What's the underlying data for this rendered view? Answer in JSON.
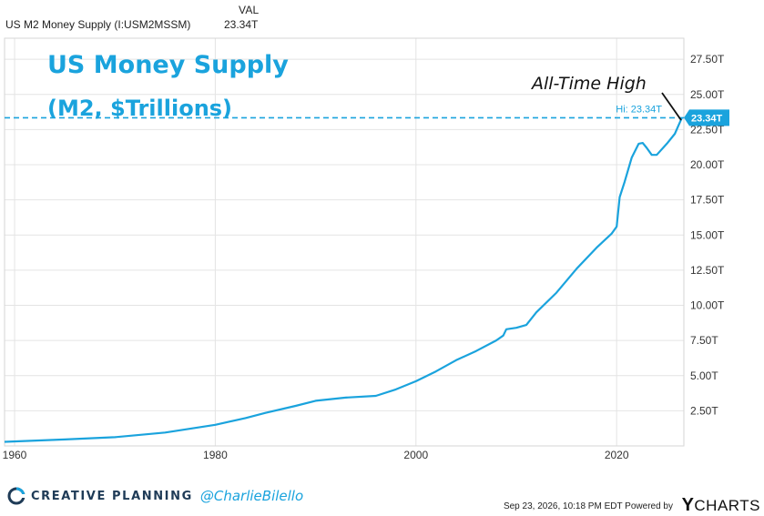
{
  "header": {
    "column_label": "VAL",
    "series_name": "US M2 Money Supply (I:USM2MSSM)",
    "series_value": "23.34T"
  },
  "annotations": {
    "title_line1": "US Money Supply",
    "title_line2": "(M2, $Trillions)",
    "callout": "All-Time High",
    "hi_label": "Hi: 23.34T",
    "last_badge": "23.34T"
  },
  "footer": {
    "brand": "CREATIVE PLANNING",
    "handle": "@CharlieBilello",
    "timestamp": "Sep 23, 2026, 10:18 PM EDT Powered by",
    "ycharts": "CHARTS",
    "ycharts_prefix": "Y"
  },
  "colors": {
    "line": "#1aa3dd",
    "grid": "#e4e4e4",
    "badge": "#1aa3dd",
    "brand_navy": "#1f3b57"
  },
  "chart_data": {
    "type": "line",
    "title": "US Money Supply",
    "subtitle": "(M2, $Trillions)",
    "xlabel": "",
    "ylabel": "",
    "xlim": [
      1959,
      2026.7
    ],
    "ylim": [
      0,
      29
    ],
    "x_ticks": [
      1960,
      1980,
      2000,
      2020
    ],
    "y_ticks": [
      2.5,
      5,
      7.5,
      10,
      12.5,
      15,
      17.5,
      20,
      22.5,
      25,
      27.5
    ],
    "y_tick_labels": [
      "2.50T",
      "5.00T",
      "7.50T",
      "10.00T",
      "12.50T",
      "15.00T",
      "17.50T",
      "20.00T",
      "22.50T",
      "25.00T",
      "27.50T"
    ],
    "grid": true,
    "reference_line": {
      "value": 23.34,
      "label": "Hi: 23.34T",
      "style": "dashed"
    },
    "series": [
      {
        "name": "US M2 Money Supply (I:USM2MSSM)",
        "x": [
          1959,
          1965,
          1970,
          1975,
          1980,
          1983,
          1985,
          1988,
          1990,
          1993,
          1996,
          1998,
          2000,
          2002,
          2004,
          2006,
          2008,
          2008.7,
          2009,
          2010,
          2011,
          2012,
          2014,
          2016,
          2018,
          2019.5,
          2020,
          2020.3,
          2020.8,
          2021.5,
          2022.2,
          2022.6,
          2023,
          2023.5,
          2024,
          2025,
          2025.8,
          2026.5
        ],
        "values": [
          0.29,
          0.46,
          0.62,
          0.95,
          1.5,
          1.98,
          2.35,
          2.85,
          3.21,
          3.44,
          3.56,
          4.02,
          4.6,
          5.3,
          6.1,
          6.75,
          7.5,
          7.85,
          8.3,
          8.4,
          8.6,
          9.5,
          10.9,
          12.6,
          14.1,
          15.1,
          15.6,
          17.7,
          18.8,
          20.5,
          21.5,
          21.55,
          21.2,
          20.7,
          20.7,
          21.5,
          22.2,
          23.34
        ]
      }
    ]
  }
}
